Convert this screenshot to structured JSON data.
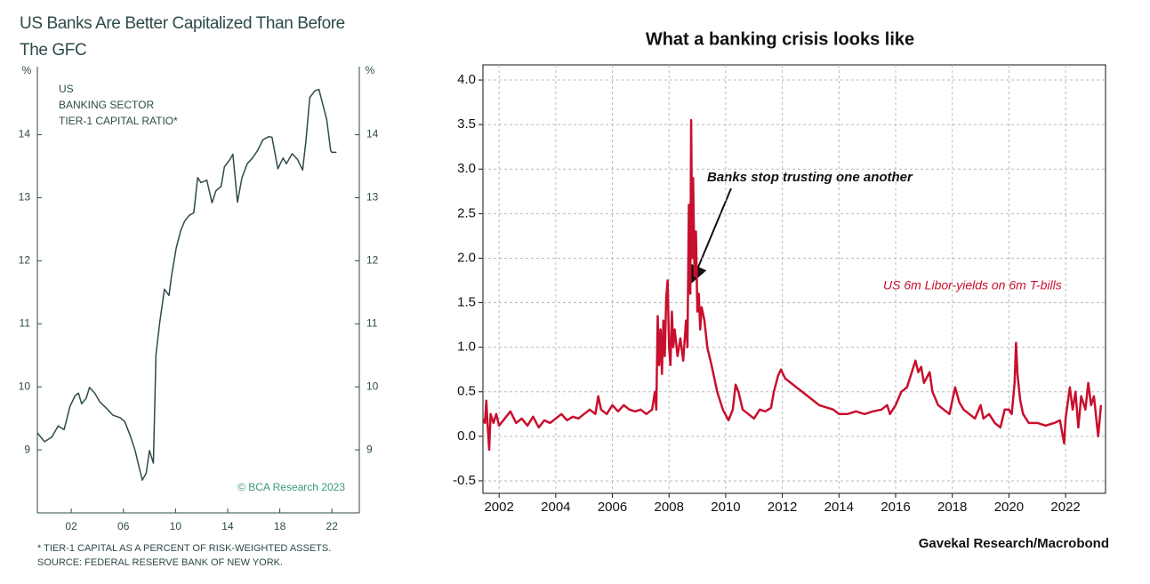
{
  "chart_data": [
    {
      "type": "line",
      "title": "US Banks Are Better Capitalized Than Before The GFC",
      "y_label": "%",
      "mirror_y": true,
      "grid": false,
      "annotation": [
        "US",
        "BANKING SECTOR",
        "TIER-1 CAPITAL RATIO*"
      ],
      "source_logo": "© BCA Research 2023",
      "footnotes": [
        "* TIER-1 CAPITAL AS A PERCENT OF RISK-WEIGHTED ASSETS.",
        "SOURCE: FEDERAL RESERVE BANK OF NEW YORK."
      ],
      "xlim": [
        1999.4,
        2024.1
      ],
      "xticks": [
        {
          "value": 2002,
          "label": "02"
        },
        {
          "value": 2006,
          "label": "06"
        },
        {
          "value": 2010,
          "label": "10"
        },
        {
          "value": 2014,
          "label": "14"
        },
        {
          "value": 2018,
          "label": "18"
        },
        {
          "value": 2022,
          "label": "22"
        }
      ],
      "ylim": [
        8.0,
        15.08
      ],
      "yticks": [
        9,
        10,
        11,
        12,
        13,
        14
      ],
      "x": [
        1999.4,
        1999.95,
        2000.5,
        2001,
        2001.45,
        2001.9,
        2002.3,
        2002.55,
        2002.8,
        2003.15,
        2003.4,
        2003.8,
        2004.2,
        2004.7,
        2005.2,
        2005.75,
        2006.1,
        2006.5,
        2006.9,
        2007.2,
        2007.45,
        2007.75,
        2008,
        2008.3,
        2008.5,
        2008.8,
        2009.15,
        2009.5,
        2009.7,
        2010.05,
        2010.4,
        2010.7,
        2011.05,
        2011.4,
        2011.7,
        2011.95,
        2012.4,
        2012.8,
        2013.1,
        2013.5,
        2013.75,
        2014.15,
        2014.4,
        2014.75,
        2015.1,
        2015.5,
        2015.9,
        2016.3,
        2016.7,
        2017.15,
        2017.4,
        2017.85,
        2018.25,
        2018.5,
        2018.95,
        2019.35,
        2019.75,
        2020,
        2020.3,
        2020.7,
        2021,
        2021.25,
        2021.6,
        2021.9,
        2022,
        2022.35
      ],
      "series": [
        {
          "color": "#2e4a4a",
          "values": [
            9.27,
            9.13,
            9.2,
            9.38,
            9.32,
            9.69,
            9.86,
            9.9,
            9.73,
            9.82,
            9.99,
            9.9,
            9.76,
            9.66,
            9.55,
            9.51,
            9.45,
            9.24,
            8.99,
            8.73,
            8.52,
            8.63,
            8.99,
            8.79,
            10.51,
            11.04,
            11.55,
            11.45,
            11.77,
            12.2,
            12.48,
            12.63,
            12.72,
            12.76,
            13.32,
            13.24,
            13.28,
            12.92,
            13.11,
            13.18,
            13.49,
            13.6,
            13.69,
            12.93,
            13.32,
            13.54,
            13.63,
            13.75,
            13.92,
            13.97,
            13.96,
            13.46,
            13.63,
            13.54,
            13.7,
            13.61,
            13.44,
            13.89,
            14.59,
            14.7,
            14.72,
            14.52,
            14.24,
            13.75,
            13.72,
            13.72
          ]
        }
      ]
    },
    {
      "type": "line",
      "title": "What a banking crisis looks like",
      "grid": true,
      "annotation": "Banks stop trusting one another",
      "source": "Gavekal Research/Macrobond",
      "xlim": [
        2001.43,
        2023.41
      ],
      "xticks": [
        2002,
        2004,
        2006,
        2008,
        2010,
        2012,
        2014,
        2016,
        2018,
        2020,
        2022
      ],
      "ylim": [
        -0.64,
        4.17
      ],
      "yticks": [
        {
          "value": 4,
          "label": "4.0"
        },
        3.5,
        {
          "value": 3,
          "label": "3.0"
        },
        2.5,
        {
          "value": 2,
          "label": "2.0"
        },
        1.5,
        {
          "value": 1,
          "label": "1.0"
        },
        0.5,
        {
          "value": 0,
          "label": "0.0"
        },
        -0.5
      ],
      "x": [
        2001.45,
        2001.5,
        2001.55,
        2001.6,
        2001.65,
        2001.7,
        2001.8,
        2001.9,
        2002.0,
        2002.2,
        2002.4,
        2002.6,
        2002.8,
        2003.0,
        2003.2,
        2003.4,
        2003.6,
        2003.8,
        2004.0,
        2004.2,
        2004.4,
        2004.6,
        2004.8,
        2005.0,
        2005.2,
        2005.4,
        2005.5,
        2005.6,
        2005.8,
        2006.0,
        2006.2,
        2006.4,
        2006.6,
        2006.8,
        2007.0,
        2007.2,
        2007.4,
        2007.5,
        2007.55,
        2007.6,
        2007.65,
        2007.7,
        2007.75,
        2007.8,
        2007.85,
        2007.9,
        2007.95,
        2008.0,
        2008.05,
        2008.1,
        2008.15,
        2008.2,
        2008.3,
        2008.4,
        2008.5,
        2008.6,
        2008.65,
        2008.7,
        2008.75,
        2008.78,
        2008.82,
        2008.85,
        2008.9,
        2008.95,
        2009.0,
        2009.05,
        2009.1,
        2009.15,
        2009.25,
        2009.35,
        2009.5,
        2009.7,
        2009.9,
        2010.1,
        2010.25,
        2010.35,
        2010.45,
        2010.6,
        2010.8,
        2011.0,
        2011.2,
        2011.4,
        2011.6,
        2011.7,
        2011.85,
        2011.95,
        2012.1,
        2012.3,
        2012.5,
        2012.7,
        2012.9,
        2013.1,
        2013.3,
        2013.6,
        2013.8,
        2014.0,
        2014.3,
        2014.6,
        2014.9,
        2015.2,
        2015.5,
        2015.7,
        2015.8,
        2016.0,
        2016.2,
        2016.4,
        2016.6,
        2016.7,
        2016.8,
        2016.9,
        2017.0,
        2017.2,
        2017.3,
        2017.5,
        2017.7,
        2017.9,
        2018.1,
        2018.25,
        2018.4,
        2018.6,
        2018.8,
        2019.0,
        2019.1,
        2019.3,
        2019.5,
        2019.7,
        2019.85,
        2020.0,
        2020.1,
        2020.2,
        2020.25,
        2020.3,
        2020.4,
        2020.5,
        2020.7,
        2021.0,
        2021.3,
        2021.6,
        2021.8,
        2021.95,
        2022.0,
        2022.15,
        2022.25,
        2022.35,
        2022.45,
        2022.55,
        2022.7,
        2022.8,
        2022.9,
        2023.0,
        2023.1,
        2023.15,
        2023.25
      ],
      "series": [
        {
          "name": "US 6m Libor-yields on 6m T-bills",
          "color": "#c8102e",
          "values": [
            0.2,
            0.15,
            0.4,
            0.1,
            -0.15,
            0.25,
            0.15,
            0.25,
            0.12,
            0.2,
            0.28,
            0.15,
            0.2,
            0.12,
            0.22,
            0.1,
            0.18,
            0.15,
            0.2,
            0.25,
            0.18,
            0.22,
            0.2,
            0.25,
            0.3,
            0.25,
            0.45,
            0.3,
            0.25,
            0.35,
            0.28,
            0.35,
            0.3,
            0.28,
            0.3,
            0.25,
            0.3,
            0.5,
            0.3,
            1.35,
            0.8,
            1.2,
            0.7,
            1.3,
            0.9,
            1.55,
            1.75,
            1.0,
            0.8,
            1.4,
            1.0,
            1.2,
            0.9,
            1.1,
            0.85,
            1.3,
            1.0,
            2.6,
            1.6,
            3.55,
            2.0,
            2.9,
            1.8,
            2.3,
            1.4,
            1.6,
            1.2,
            1.45,
            1.3,
            1.0,
            0.8,
            0.5,
            0.3,
            0.18,
            0.3,
            0.58,
            0.5,
            0.3,
            0.25,
            0.2,
            0.3,
            0.28,
            0.32,
            0.5,
            0.68,
            0.75,
            0.65,
            0.6,
            0.55,
            0.5,
            0.45,
            0.4,
            0.35,
            0.32,
            0.3,
            0.25,
            0.25,
            0.28,
            0.25,
            0.28,
            0.3,
            0.35,
            0.25,
            0.35,
            0.5,
            0.55,
            0.75,
            0.85,
            0.72,
            0.78,
            0.6,
            0.72,
            0.5,
            0.35,
            0.3,
            0.25,
            0.55,
            0.38,
            0.3,
            0.25,
            0.2,
            0.35,
            0.2,
            0.25,
            0.15,
            0.1,
            0.3,
            0.3,
            0.25,
            0.6,
            1.05,
            0.7,
            0.4,
            0.25,
            0.15,
            0.15,
            0.12,
            0.15,
            0.18,
            -0.08,
            0.2,
            0.55,
            0.3,
            0.5,
            0.1,
            0.45,
            0.3,
            0.6,
            0.35,
            0.45,
            0.15,
            0.0,
            0.35
          ]
        }
      ]
    }
  ]
}
